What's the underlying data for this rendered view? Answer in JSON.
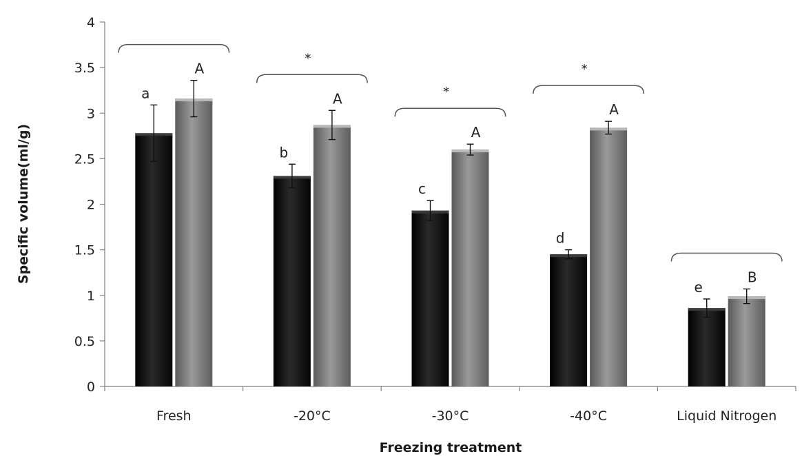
{
  "chart_data": {
    "type": "bar",
    "title": "",
    "xlabel": "Freezing treatment",
    "ylabel": "Specific volume(ml/g)",
    "ylim": [
      0,
      4
    ],
    "yticks": [
      "0",
      "0.5",
      "1",
      "1.5",
      "2",
      "2.5",
      "3",
      "3.5",
      "4"
    ],
    "grid": false,
    "legend": "none",
    "categories": [
      "Fresh",
      "-20°C",
      "-30°C",
      "-40°C",
      "Liquid Nitrogen"
    ],
    "series": [
      {
        "color": "#111111",
        "values": [
          2.78,
          2.31,
          1.93,
          1.45,
          0.86
        ],
        "errors": [
          0.31,
          0.13,
          0.11,
          0.05,
          0.1
        ],
        "letters": [
          "a",
          "b",
          "c",
          "d",
          "e"
        ]
      },
      {
        "color": "#7a7a7a",
        "values": [
          3.16,
          2.87,
          2.6,
          2.84,
          0.99
        ],
        "errors": [
          0.2,
          0.16,
          0.06,
          0.07,
          0.08
        ],
        "letters": [
          "A",
          "A",
          "A",
          "A",
          "B"
        ]
      }
    ],
    "significance": [
      "",
      "*",
      "*",
      "*",
      ""
    ]
  }
}
